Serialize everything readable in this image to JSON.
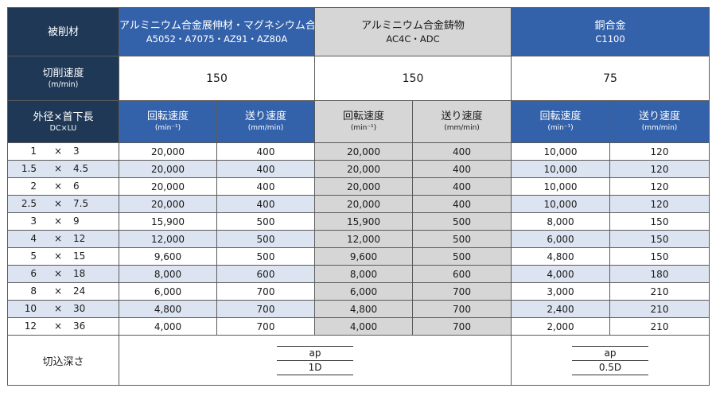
{
  "header": {
    "material_label": "被削材",
    "groups": [
      {
        "name": "アルミニウム合金展伸材・マグネシウム合金",
        "grades": "A5052・A7075・AZ91・AZ80A"
      },
      {
        "name": "アルミニウム合金鋳物",
        "grades": "AC4C・ADC"
      },
      {
        "name": "銅合金",
        "grades": "C1100"
      }
    ]
  },
  "cutting_speed": {
    "label": "切削速度",
    "unit": "(m/min)",
    "values": [
      "150",
      "150",
      "75"
    ]
  },
  "dimension_header": {
    "label": "外径×首下長",
    "sublabel": "DC×LU"
  },
  "sub_headers": {
    "rpm": "回転速度",
    "rpm_unit": "(min⁻¹)",
    "feed": "送り速度",
    "feed_unit": "(mm/min)"
  },
  "rows": [
    {
      "dc": "1",
      "x": "×",
      "lu": "3",
      "vals": [
        "20,000",
        "400",
        "20,000",
        "400",
        "10,000",
        "120"
      ]
    },
    {
      "dc": "1.5",
      "x": "×",
      "lu": "4.5",
      "vals": [
        "20,000",
        "400",
        "20,000",
        "400",
        "10,000",
        "120"
      ]
    },
    {
      "dc": "2",
      "x": "×",
      "lu": "6",
      "vals": [
        "20,000",
        "400",
        "20,000",
        "400",
        "10,000",
        "120"
      ]
    },
    {
      "dc": "2.5",
      "x": "×",
      "lu": "7.5",
      "vals": [
        "20,000",
        "400",
        "20,000",
        "400",
        "10,000",
        "120"
      ]
    },
    {
      "dc": "3",
      "x": "×",
      "lu": "9",
      "vals": [
        "15,900",
        "500",
        "15,900",
        "500",
        "8,000",
        "150"
      ]
    },
    {
      "dc": "4",
      "x": "×",
      "lu": "12",
      "vals": [
        "12,000",
        "500",
        "12,000",
        "500",
        "6,000",
        "150"
      ]
    },
    {
      "dc": "5",
      "x": "×",
      "lu": "15",
      "vals": [
        "9,600",
        "500",
        "9,600",
        "500",
        "4,800",
        "150"
      ]
    },
    {
      "dc": "6",
      "x": "×",
      "lu": "18",
      "vals": [
        "8,000",
        "600",
        "8,000",
        "600",
        "4,000",
        "180"
      ]
    },
    {
      "dc": "8",
      "x": "×",
      "lu": "24",
      "vals": [
        "6,000",
        "700",
        "6,000",
        "700",
        "3,000",
        "210"
      ]
    },
    {
      "dc": "10",
      "x": "×",
      "lu": "30",
      "vals": [
        "4,800",
        "700",
        "4,800",
        "700",
        "2,400",
        "210"
      ]
    },
    {
      "dc": "12",
      "x": "×",
      "lu": "36",
      "vals": [
        "4,000",
        "700",
        "4,000",
        "700",
        "2,000",
        "210"
      ]
    }
  ],
  "depth": {
    "label": "切込深さ",
    "ap_symbol": "ap",
    "value_aluminum": "1D",
    "value_copper": "0.5D"
  },
  "colors": {
    "dark_header": "#1f3856",
    "blue_header": "#3462aa",
    "gray_column": "#d6d6d6",
    "stripe": "#dde4f1"
  }
}
